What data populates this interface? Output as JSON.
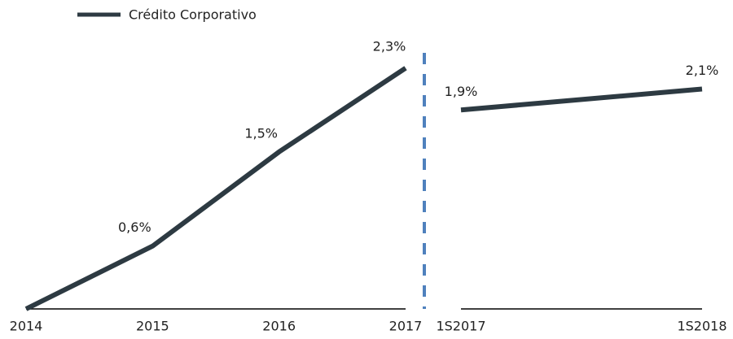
{
  "chart_data": [
    {
      "type": "line",
      "categories": [
        "2014",
        "2015",
        "2016",
        "2017"
      ],
      "series": [
        {
          "name": "Crédito Corporativo",
          "color": "#2d3a42",
          "values": [
            0,
            0.6,
            1.5,
            2.3
          ],
          "value_labels": [
            null,
            "0,6%",
            "1,5%",
            "2,3%"
          ]
        }
      ],
      "ylim": [
        0,
        2.5
      ]
    },
    {
      "type": "line",
      "categories": [
        "1S2017",
        "1S2018"
      ],
      "series": [
        {
          "color": "#2d3a42",
          "values": [
            1.9,
            2.1
          ],
          "value_labels": [
            "1,9%",
            "2,1%"
          ]
        }
      ],
      "ylim": [
        0,
        2.5
      ]
    }
  ],
  "divider_color": "#4f81bd"
}
